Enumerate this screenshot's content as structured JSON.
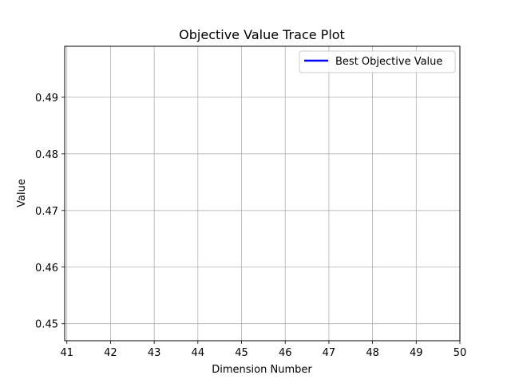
{
  "chart_data": {
    "type": "line",
    "title": "Objective Value Trace Plot",
    "xlabel": "Dimension Number",
    "ylabel": "Value",
    "xlim": [
      40.95,
      50
    ],
    "ylim": [
      0.447,
      0.499
    ],
    "xticks": [
      41,
      42,
      43,
      44,
      45,
      46,
      47,
      48,
      49,
      50
    ],
    "yticks": [
      0.45,
      0.46,
      0.47,
      0.48,
      0.49
    ],
    "grid": true,
    "legend_position": "top-right",
    "series": [
      {
        "name": "Best Objective Value",
        "color": "#0000ff",
        "x": [],
        "y": []
      }
    ]
  }
}
